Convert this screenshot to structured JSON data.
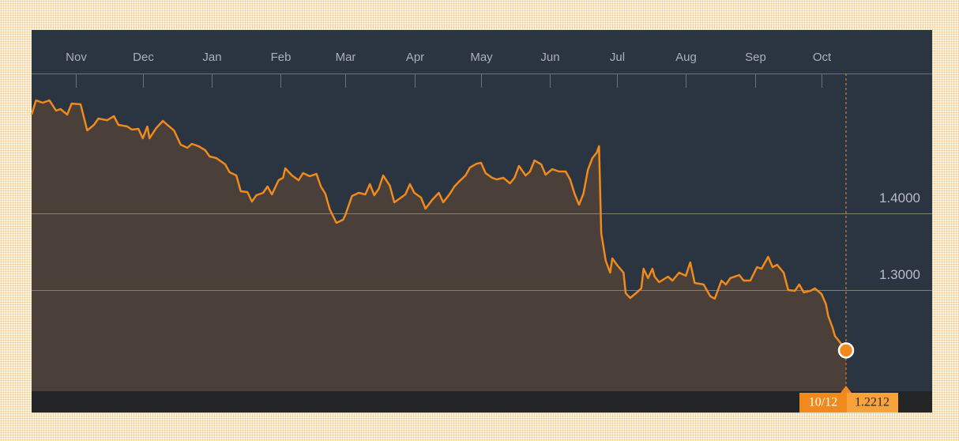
{
  "chart_data": {
    "type": "line",
    "color": "#f08a1d",
    "area_color": "#4a4039",
    "x": [
      "10/12",
      "10/14",
      "10/17",
      "10/20",
      "10/23",
      "10/25",
      "10/28",
      "10/30",
      "11/03",
      "11/06",
      "11/09",
      "11/11",
      "11/15",
      "11/18",
      "11/20",
      "11/24",
      "11/26",
      "11/29",
      "12/01",
      "12/03",
      "12/04",
      "12/07",
      "12/10",
      "12/12",
      "12/15",
      "12/18",
      "12/21",
      "12/23",
      "12/26",
      "12/29",
      "12/31",
      "01/03",
      "01/07",
      "01/09",
      "01/12",
      "01/14",
      "01/17",
      "01/19",
      "01/21",
      "01/24",
      "01/26",
      "01/28",
      "01/31",
      "02/02",
      "02/03",
      "02/06",
      "02/09",
      "02/11",
      "02/14",
      "02/17",
      "02/19",
      "02/21",
      "02/23",
      "02/26",
      "02/29",
      "03/01",
      "03/04",
      "03/07",
      "03/10",
      "03/12",
      "03/14",
      "03/16",
      "03/18",
      "03/21",
      "03/23",
      "03/26",
      "03/28",
      "03/30",
      "04/01",
      "04/04",
      "04/06",
      "04/09",
      "04/12",
      "04/14",
      "04/17",
      "04/19",
      "04/21",
      "04/24",
      "04/26",
      "04/29",
      "05/01",
      "05/03",
      "05/06",
      "05/08",
      "05/11",
      "05/14",
      "05/16",
      "05/18",
      "05/21",
      "05/23",
      "05/25",
      "05/28",
      "05/30",
      "06/02",
      "06/05",
      "06/08",
      "06/10",
      "06/12",
      "06/14",
      "06/16",
      "06/18",
      "06/20",
      "06/22",
      "06/23",
      "06/24",
      "06/26",
      "06/28",
      "06/29",
      "07/01",
      "07/04",
      "07/05",
      "07/07",
      "07/10",
      "07/12",
      "07/13",
      "07/15",
      "07/17",
      "07/18",
      "07/20",
      "07/24",
      "07/26",
      "07/29",
      "08/01",
      "08/03",
      "08/05",
      "08/09",
      "08/12",
      "08/14",
      "08/17",
      "08/19",
      "08/21",
      "08/25",
      "08/27",
      "08/30",
      "09/02",
      "09/04",
      "09/07",
      "09/09",
      "09/11",
      "09/14",
      "09/16",
      "09/19",
      "09/21",
      "09/23",
      "09/26",
      "09/28",
      "10/01",
      "10/03",
      "10/04",
      "10/06",
      "10/07",
      "10/09",
      "10/12"
    ],
    "values": [
      1.5289,
      1.5474,
      1.5443,
      1.5474,
      1.534,
      1.5361,
      1.5289,
      1.5433,
      1.5423,
      1.5082,
      1.5155,
      1.5237,
      1.5216,
      1.5268,
      1.5155,
      1.5134,
      1.5093,
      1.5103,
      1.4979,
      1.5134,
      1.4979,
      1.5113,
      1.5206,
      1.5155,
      1.5082,
      1.4897,
      1.4856,
      1.4907,
      1.4876,
      1.4825,
      1.4742,
      1.4722,
      1.4639,
      1.4536,
      1.4495,
      1.4289,
      1.4278,
      1.4155,
      1.4237,
      1.4268,
      1.4351,
      1.4247,
      1.4433,
      1.4464,
      1.4588,
      1.4495,
      1.4433,
      1.4526,
      1.4485,
      1.4515,
      1.4351,
      1.4258,
      1.4052,
      1.3876,
      1.3918,
      1.3979,
      1.4227,
      1.4268,
      1.4247,
      1.4381,
      1.4237,
      1.432,
      1.4495,
      1.4361,
      1.4144,
      1.4206,
      1.4247,
      1.4381,
      1.4268,
      1.4206,
      1.4062,
      1.4175,
      1.4268,
      1.4144,
      1.4258,
      1.4351,
      1.4412,
      1.4495,
      1.4598,
      1.4649,
      1.466,
      1.4526,
      1.4464,
      1.4443,
      1.4464,
      1.4392,
      1.4464,
      1.4619,
      1.4495,
      1.4546,
      1.4691,
      1.4639,
      1.4505,
      1.4577,
      1.4546,
      1.4546,
      1.4443,
      1.4258,
      1.4113,
      1.4258,
      1.4567,
      1.4722,
      1.4794,
      1.4876,
      1.3742,
      1.3381,
      1.3227,
      1.3412,
      1.333,
      1.3227,
      1.2959,
      1.2897,
      1.2969,
      1.3021,
      1.3278,
      1.3155,
      1.3278,
      1.3175,
      1.3103,
      1.3175,
      1.3124,
      1.3227,
      1.3186,
      1.3361,
      1.3093,
      1.3072,
      1.2918,
      1.2887,
      1.3124,
      1.3072,
      1.3155,
      1.3196,
      1.3124,
      1.3124,
      1.3299,
      1.3278,
      1.3433,
      1.3299,
      1.333,
      1.3227,
      1.3,
      1.299,
      1.3072,
      1.2969,
      1.299,
      1.3021,
      1.2948,
      1.2814,
      1.266,
      1.2505,
      1.2402,
      1.233,
      1.2212
    ],
    "xticks": [
      {
        "value": "11/01",
        "label": "Nov"
      },
      {
        "value": "12/01",
        "label": "Dec"
      },
      {
        "value": "01/01",
        "label": "Jan"
      },
      {
        "value": "02/01",
        "label": "Feb"
      },
      {
        "value": "03/01",
        "label": "Mar"
      },
      {
        "value": "04/01",
        "label": "Apr"
      },
      {
        "value": "05/01",
        "label": "May"
      },
      {
        "value": "06/01",
        "label": "Jun"
      },
      {
        "value": "07/01",
        "label": "Jul"
      },
      {
        "value": "08/01",
        "label": "Aug"
      },
      {
        "value": "09/01",
        "label": "Sep"
      },
      {
        "value": "10/01",
        "label": "Oct"
      }
    ],
    "ylim": [
      1.168,
      1.5825
    ],
    "yticks": [
      {
        "value": 1.3,
        "label": "1.3000"
      },
      {
        "value": 1.4,
        "label": "1.4000"
      }
    ],
    "grid": true
  }
}
